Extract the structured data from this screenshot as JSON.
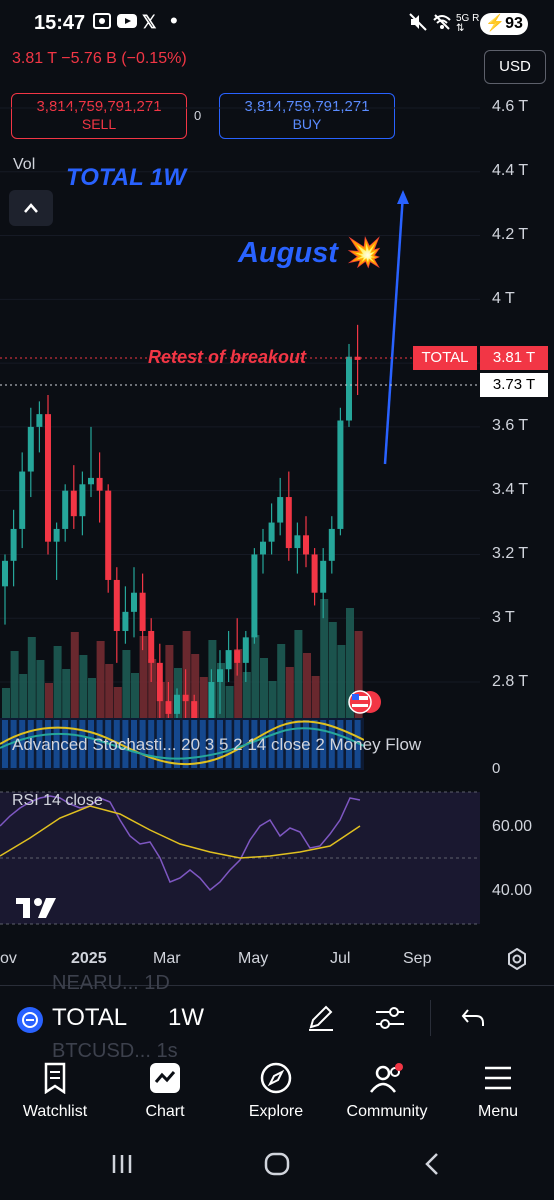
{
  "status_bar": {
    "time": "15:47",
    "battery": "93",
    "icons": [
      "screenshot-icon",
      "youtube-icon",
      "x-icon",
      "dot-icon",
      "mute-icon",
      "wifi-off-icon",
      "5g-signal-icon",
      "battery-charging-icon"
    ]
  },
  "header": {
    "price_change": "3.81 T  −5.76 B (−0.15%)",
    "currency": "USD",
    "sell": {
      "value": "3,814,759,791,271",
      "label": "SELL"
    },
    "buy": {
      "value": "3,814,759,791,271",
      "label": "BUY"
    },
    "spread": "0"
  },
  "chart": {
    "vol_label": "Vol",
    "annotations": {
      "total": "TOTAL 1W",
      "august": "August",
      "retest": "Retest of breakout"
    },
    "y_axis_labels": [
      "4.6 T",
      "4.4 T",
      "4.2 T",
      "4 T",
      "3.6 T",
      "3.4 T",
      "3.2 T",
      "3 T",
      "2.8 T"
    ],
    "symbol_tag": "TOTAL",
    "last_price": "3.81 T",
    "crosshair_price": "3.73 T",
    "colors": {
      "up": "#26a69a",
      "down": "#f23645",
      "annotation": "#2962ff"
    }
  },
  "indicators": {
    "stochastic_label": "Advanced Stochasti...  20  3  5  2  14  close  2  Money Flow",
    "stochastic_zero": "0",
    "rsi_label": "RSI 14 close",
    "rsi_levels": [
      "60.00",
      "40.00"
    ]
  },
  "x_axis": {
    "labels": [
      "ov",
      "2025",
      "Mar",
      "May",
      "Jul",
      "Sep"
    ]
  },
  "toolbar": {
    "ghost_top": "NEARU... 1D",
    "ghost_bottom": "BTCUSD... 1s",
    "symbol": "TOTAL",
    "timeframe": "1W"
  },
  "nav": {
    "items": [
      {
        "label": "Watchlist"
      },
      {
        "label": "Chart"
      },
      {
        "label": "Explore"
      },
      {
        "label": "Community"
      },
      {
        "label": "Menu"
      }
    ]
  },
  "chart_data": {
    "type": "candlestick",
    "title": "TOTAL 1W",
    "unit": "T USD",
    "ylim": [
      2.7,
      4.7
    ],
    "candles": [
      {
        "o": 3.1,
        "h": 3.2,
        "l": 2.98,
        "c": 3.18
      },
      {
        "o": 3.18,
        "h": 3.34,
        "l": 3.1,
        "c": 3.28
      },
      {
        "o": 3.28,
        "h": 3.52,
        "l": 3.22,
        "c": 3.46
      },
      {
        "o": 3.46,
        "h": 3.66,
        "l": 3.38,
        "c": 3.6
      },
      {
        "o": 3.6,
        "h": 3.68,
        "l": 3.52,
        "c": 3.64
      },
      {
        "o": 3.64,
        "h": 3.7,
        "l": 3.2,
        "c": 3.24
      },
      {
        "o": 3.24,
        "h": 3.3,
        "l": 3.12,
        "c": 3.28
      },
      {
        "o": 3.28,
        "h": 3.42,
        "l": 3.24,
        "c": 3.4
      },
      {
        "o": 3.4,
        "h": 3.48,
        "l": 3.28,
        "c": 3.32
      },
      {
        "o": 3.32,
        "h": 3.46,
        "l": 3.26,
        "c": 3.42
      },
      {
        "o": 3.42,
        "h": 3.6,
        "l": 3.38,
        "c": 3.44
      },
      {
        "o": 3.44,
        "h": 3.52,
        "l": 3.3,
        "c": 3.4
      },
      {
        "o": 3.4,
        "h": 3.42,
        "l": 3.08,
        "c": 3.12
      },
      {
        "o": 3.12,
        "h": 3.16,
        "l": 2.86,
        "c": 2.96
      },
      {
        "o": 2.96,
        "h": 3.1,
        "l": 2.92,
        "c": 3.02
      },
      {
        "o": 3.02,
        "h": 3.16,
        "l": 2.94,
        "c": 3.08
      },
      {
        "o": 3.08,
        "h": 3.14,
        "l": 2.9,
        "c": 2.96
      },
      {
        "o": 2.96,
        "h": 3.0,
        "l": 2.8,
        "c": 2.86
      },
      {
        "o": 2.86,
        "h": 2.92,
        "l": 2.68,
        "c": 2.74
      },
      {
        "o": 2.74,
        "h": 2.8,
        "l": 2.64,
        "c": 2.7
      },
      {
        "o": 2.7,
        "h": 2.78,
        "l": 2.62,
        "c": 2.76
      },
      {
        "o": 2.76,
        "h": 2.84,
        "l": 2.66,
        "c": 2.74
      },
      {
        "o": 2.74,
        "h": 2.76,
        "l": 2.56,
        "c": 2.64
      },
      {
        "o": 2.64,
        "h": 2.68,
        "l": 2.54,
        "c": 2.58
      },
      {
        "o": 2.58,
        "h": 2.84,
        "l": 2.56,
        "c": 2.8
      },
      {
        "o": 2.8,
        "h": 2.9,
        "l": 2.7,
        "c": 2.84
      },
      {
        "o": 2.84,
        "h": 2.96,
        "l": 2.8,
        "c": 2.9
      },
      {
        "o": 2.9,
        "h": 3.0,
        "l": 2.82,
        "c": 2.86
      },
      {
        "o": 2.86,
        "h": 2.96,
        "l": 2.8,
        "c": 2.94
      },
      {
        "o": 2.94,
        "h": 3.22,
        "l": 2.92,
        "c": 3.2
      },
      {
        "o": 3.2,
        "h": 3.28,
        "l": 3.14,
        "c": 3.24
      },
      {
        "o": 3.24,
        "h": 3.36,
        "l": 3.2,
        "c": 3.3
      },
      {
        "o": 3.3,
        "h": 3.44,
        "l": 3.26,
        "c": 3.38
      },
      {
        "o": 3.38,
        "h": 3.46,
        "l": 3.18,
        "c": 3.22
      },
      {
        "o": 3.22,
        "h": 3.3,
        "l": 3.14,
        "c": 3.26
      },
      {
        "o": 3.26,
        "h": 3.32,
        "l": 3.16,
        "c": 3.2
      },
      {
        "o": 3.2,
        "h": 3.22,
        "l": 3.04,
        "c": 3.08
      },
      {
        "o": 3.08,
        "h": 3.22,
        "l": 3.0,
        "c": 3.18
      },
      {
        "o": 3.18,
        "h": 3.32,
        "l": 3.14,
        "c": 3.28
      },
      {
        "o": 3.28,
        "h": 3.66,
        "l": 3.26,
        "c": 3.62
      },
      {
        "o": 3.62,
        "h": 3.86,
        "l": 3.6,
        "c": 3.82
      },
      {
        "o": 3.82,
        "h": 3.92,
        "l": 3.7,
        "c": 3.81
      }
    ]
  }
}
